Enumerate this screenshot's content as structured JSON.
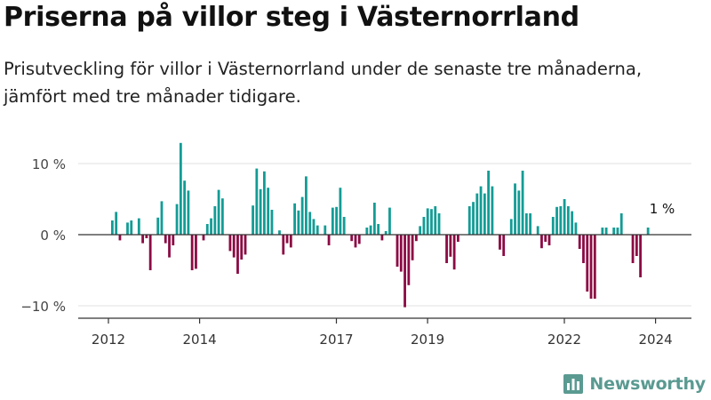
{
  "header": {
    "title": "Priserna på villor steg i Västernorrland",
    "subtitle": "Prisutveckling för villor i Västernorrland under de senaste tre månaderna, jämfört med tre månader tidigare."
  },
  "brand": {
    "name": "Newsworthy",
    "icon": "bar-chart-speech-bubble-icon",
    "color": "#5a9a91"
  },
  "colors": {
    "positive": "#139c95",
    "negative": "#8c0a43",
    "axis": "#333333",
    "grid": "#e2e2e2"
  },
  "chart_data": {
    "type": "bar",
    "title": "Priserna på villor steg i Västernorrland",
    "ylim": [
      -11,
      13.5
    ],
    "yticks": [
      10,
      0,
      -10
    ],
    "ytick_labels": [
      "10 %",
      "0 %",
      "−10 %"
    ],
    "x_start": 2012.0,
    "x_step": 0.08333,
    "xticks": [
      2012,
      2014,
      2017,
      2019,
      2022,
      2024
    ],
    "xtick_labels": [
      "2012",
      "2014",
      "2017",
      "2019",
      "2022",
      "2024"
    ],
    "grid": true,
    "annotation": {
      "text": "1 %",
      "value": 1
    },
    "values": [
      2,
      3.2,
      -0.8,
      0,
      1.7,
      2,
      0,
      2.3,
      -1.2,
      -0.5,
      -5,
      0,
      2.4,
      4.7,
      -1.2,
      -3.2,
      -1.5,
      4.3,
      12.9,
      7.6,
      6.2,
      -5,
      -4.8,
      0,
      -0.8,
      1.5,
      2.3,
      4,
      6.3,
      5.1,
      0,
      -2.3,
      -3.2,
      -5.5,
      -3.5,
      -2.8,
      0,
      4.1,
      9.3,
      6.4,
      8.9,
      6.6,
      3.5,
      0,
      0.6,
      -2.8,
      -1.2,
      -1.8,
      4.4,
      3.4,
      5.3,
      8.2,
      3.2,
      2.2,
      1.3,
      0,
      1.3,
      -1.5,
      3.8,
      3.9,
      6.6,
      2.5,
      0,
      -0.9,
      -1.8,
      -1.3,
      0,
      1,
      1.3,
      4.5,
      1.5,
      -0.8,
      0.5,
      3.8,
      0,
      -4.5,
      -5.2,
      -10.2,
      -7.1,
      -3.6,
      -0.9,
      1.2,
      2.5,
      3.7,
      3.6,
      4,
      3,
      0,
      -4,
      -3.1,
      -4.9,
      -1,
      0,
      0,
      4,
      4.6,
      5.8,
      6.8,
      5.8,
      9,
      6.8,
      0,
      -2.1,
      -3,
      0,
      2.2,
      7.2,
      6.2,
      9,
      3,
      3,
      0,
      1.2,
      -1.9,
      -1,
      -1.5,
      2.5,
      3.9,
      4,
      5,
      4,
      3.3,
      1.7,
      -2,
      -4,
      -8,
      -9,
      -9,
      0,
      1,
      1,
      0,
      1,
      1,
      3,
      0,
      0,
      -4,
      -3,
      -6,
      0,
      1
    ]
  }
}
